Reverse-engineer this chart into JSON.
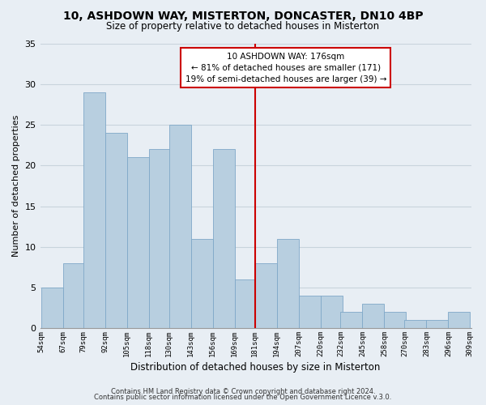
{
  "title": "10, ASHDOWN WAY, MISTERTON, DONCASTER, DN10 4BP",
  "subtitle": "Size of property relative to detached houses in Misterton",
  "xlabel": "Distribution of detached houses by size in Misterton",
  "ylabel": "Number of detached properties",
  "bar_color": "#b8cfe0",
  "bar_edge_color": "#7fa8c8",
  "highlight_line_color": "#cc0000",
  "bins_left": [
    54,
    67,
    79,
    92,
    105,
    118,
    130,
    143,
    156,
    169,
    181,
    194,
    207,
    220,
    232,
    245,
    258,
    270,
    283,
    296,
    309
  ],
  "bin_width": 13,
  "counts": [
    5,
    8,
    29,
    24,
    21,
    22,
    25,
    11,
    22,
    6,
    8,
    11,
    4,
    4,
    2,
    3,
    2,
    1,
    1,
    2,
    0
  ],
  "tick_labels": [
    "54sqm",
    "67sqm",
    "79sqm",
    "92sqm",
    "105sqm",
    "118sqm",
    "130sqm",
    "143sqm",
    "156sqm",
    "169sqm",
    "181sqm",
    "194sqm",
    "207sqm",
    "220sqm",
    "232sqm",
    "245sqm",
    "258sqm",
    "270sqm",
    "283sqm",
    "296sqm",
    "309sqm"
  ],
  "ylim": [
    0,
    35
  ],
  "yticks": [
    0,
    5,
    10,
    15,
    20,
    25,
    30,
    35
  ],
  "annotation_title": "10 ASHDOWN WAY: 176sqm",
  "annotation_line1": "← 81% of detached houses are smaller (171)",
  "annotation_line2": "19% of semi-detached houses are larger (39) →",
  "annotation_box_color": "white",
  "annotation_box_edge": "#cc0000",
  "footer_line1": "Contains HM Land Registry data © Crown copyright and database right 2024.",
  "footer_line2": "Contains public sector information licensed under the Open Government Licence v.3.0.",
  "grid_color": "#c8d4dc",
  "background_color": "#e8eef4"
}
